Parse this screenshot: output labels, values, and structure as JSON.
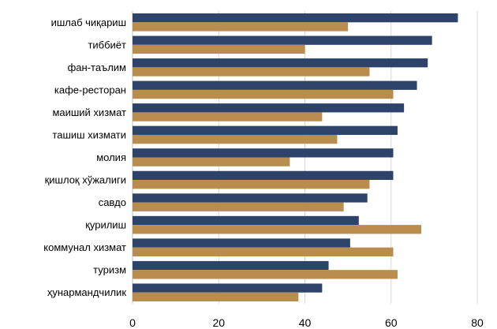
{
  "chart_data": {
    "type": "bar",
    "orientation": "horizontal",
    "title": "",
    "xlabel": "",
    "ylabel": "",
    "categories": [
      "ишлаб чиқариш",
      "тиббиёт",
      "фан-таълим",
      "кафе-ресторан",
      "маиший хизмат",
      "ташиш хизмати",
      "молия",
      "қишлоқ хўжалиги",
      "савдо",
      "қурилиш",
      "коммунал хизмат",
      "туризм",
      "ҳунармандчилик"
    ],
    "series": [
      {
        "color": "#2e4369",
        "values": [
          75.5,
          69.5,
          68.5,
          66,
          63,
          61.5,
          60.5,
          60.5,
          54.5,
          52.5,
          50.5,
          45.5,
          44
        ]
      },
      {
        "color": "#b88d4f",
        "values": [
          50,
          40,
          55,
          60.5,
          44,
          47.5,
          36.5,
          55,
          49,
          67,
          60.5,
          61.5,
          38.5
        ]
      }
    ],
    "xlim": [
      0,
      80
    ],
    "xticks": [
      0,
      20,
      40,
      60,
      80
    ],
    "grid": true,
    "legend": "none"
  }
}
